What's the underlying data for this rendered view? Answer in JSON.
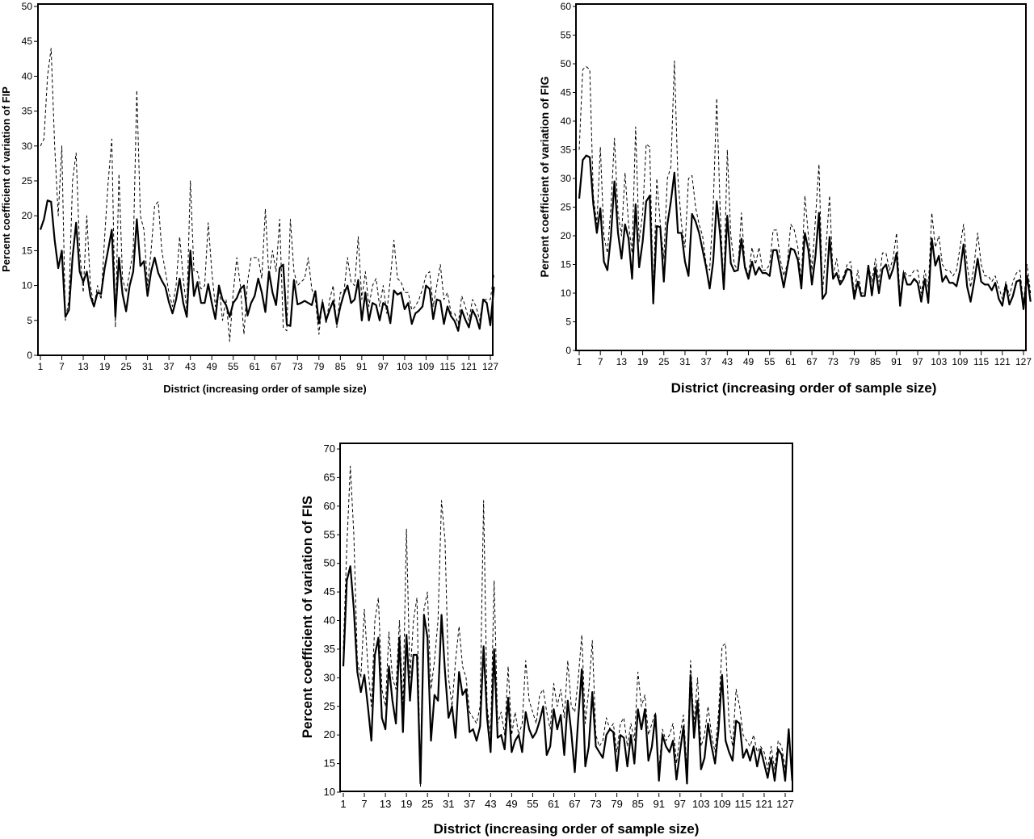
{
  "chart_data": [
    {
      "type": "line",
      "title": "",
      "xlabel": "District (increasing order of sample size)",
      "ylabel": "Percent coefficient of variation of FIP",
      "xlim": [
        1,
        127
      ],
      "ylim": [
        0,
        50
      ],
      "xticks": [
        "1",
        "7",
        "13",
        "19",
        "25",
        "31",
        "37",
        "43",
        "49",
        "55",
        "61",
        "67",
        "73",
        "79",
        "85",
        "91",
        "97",
        "103",
        "109",
        "115",
        "121",
        "127"
      ],
      "yticks": [
        "0",
        "5",
        "10",
        "15",
        "20",
        "25",
        "30",
        "35",
        "40",
        "45",
        "50"
      ],
      "series": [
        {
          "style": "solid",
          "values": [
            18,
            19.5,
            22.2,
            22,
            16.5,
            12.5,
            15,
            5.5,
            6.5,
            14,
            19,
            12,
            10.5,
            12,
            8.5,
            7,
            9,
            8.8,
            12.5,
            15.2,
            18,
            5.5,
            14,
            8.8,
            6.3,
            10,
            12,
            19.5,
            12.8,
            13.5,
            8.5,
            12,
            14,
            11.8,
            10.7,
            9.8,
            7.6,
            6,
            8,
            11,
            7.5,
            5.5,
            15,
            8.5,
            10.5,
            7.5,
            7.5,
            10.2,
            7.5,
            5.2,
            10,
            8,
            7.2,
            5.5,
            7.5,
            8.2,
            9.5,
            10,
            5.7,
            7.5,
            8.5,
            11,
            9,
            6.2,
            12,
            9,
            7.2,
            12.5,
            13,
            4.4,
            4.2,
            10.8,
            7.3,
            7.5,
            7.8,
            7.5,
            7.2,
            9.2,
            4.6,
            7.6,
            5,
            6.5,
            7.8,
            4.5,
            7,
            8.8,
            10,
            7.5,
            8,
            10.8,
            5,
            9,
            5,
            7.5,
            7.2,
            5,
            7.5,
            7,
            4.6,
            9.3,
            8.7,
            9,
            6.6,
            7.5,
            4.5,
            6,
            6.4,
            7,
            10,
            9.5,
            5.2,
            8,
            7.8,
            4.5,
            7,
            5.6,
            4.9,
            3.5,
            6.5,
            5.1,
            4,
            6.5,
            5.5,
            3.8,
            8,
            7.5,
            4.3,
            9.8
          ]
        },
        {
          "style": "dashed",
          "values": [
            30,
            31,
            40,
            44,
            30,
            20,
            30,
            5,
            8,
            25,
            29,
            15,
            9,
            20,
            10,
            7,
            10,
            8,
            17,
            25,
            31,
            4,
            26,
            11,
            9,
            12,
            15,
            38,
            20,
            18,
            10,
            15,
            21.5,
            22,
            15,
            12,
            9,
            7,
            10,
            17,
            11,
            6.5,
            25,
            12,
            12,
            9.5,
            10,
            19,
            12,
            7,
            10,
            5,
            8,
            2,
            9,
            14,
            10,
            3,
            10.5,
            14,
            14,
            14,
            11,
            21,
            11,
            15,
            12,
            19.5,
            4,
            3.5,
            19.5,
            12,
            10,
            10.5,
            11,
            14,
            9.5,
            8,
            3,
            8,
            4.5,
            8,
            10,
            4,
            9,
            9,
            14,
            10.5,
            10,
            17,
            8,
            12,
            7,
            10,
            11,
            7,
            10,
            6,
            11,
            16.5,
            11,
            10.5,
            9,
            9,
            6.5,
            7,
            8,
            9.5,
            11.5,
            12,
            7,
            10,
            13,
            8,
            9,
            6,
            6,
            4.5,
            8.5,
            7,
            5,
            8,
            7,
            5,
            8,
            8,
            8,
            11.5
          ]
        }
      ]
    },
    {
      "type": "line",
      "title": "",
      "xlabel": "District (increasing order of sample size)",
      "ylabel": "Percent coefficient of variation of FIG",
      "xlim": [
        1,
        127
      ],
      "ylim": [
        0,
        60
      ],
      "xticks": [
        "1",
        "7",
        "13",
        "19",
        "25",
        "31",
        "37",
        "43",
        "49",
        "55",
        "61",
        "67",
        "73",
        "79",
        "85",
        "91",
        "97",
        "103",
        "109",
        "115",
        "121",
        "127"
      ],
      "yticks": [
        "0",
        "5",
        "10",
        "15",
        "20",
        "25",
        "30",
        "35",
        "40",
        "45",
        "50",
        "55",
        "60"
      ],
      "series": [
        {
          "style": "solid",
          "values": [
            26.5,
            33.2,
            34,
            33.7,
            25.5,
            20.5,
            24.8,
            15.5,
            14,
            20,
            29.5,
            20.5,
            16,
            22,
            19.5,
            12.5,
            25.5,
            14.5,
            19,
            26,
            27,
            8.2,
            21.7,
            21.5,
            12,
            22,
            26,
            31,
            20.5,
            20.5,
            15.5,
            13,
            23.8,
            22.5,
            20.5,
            17.5,
            14.5,
            10.8,
            15.5,
            26,
            20,
            10.7,
            23.5,
            15.2,
            13.8,
            14,
            19.5,
            14.5,
            12.5,
            15.5,
            13.2,
            14.5,
            13.5,
            13.5,
            13,
            17.5,
            17.5,
            14.2,
            11,
            14.5,
            17.8,
            17.5,
            15.8,
            10.8,
            20.5,
            17.5,
            11.5,
            16.5,
            24,
            9,
            10,
            19.8,
            12.5,
            13.5,
            11.5,
            12.5,
            14.2,
            14,
            9,
            12,
            9.5,
            9.5,
            14.8,
            9.6,
            14.5,
            10,
            14.2,
            15,
            12.5,
            14.2,
            17,
            7.8,
            13.5,
            11.5,
            11.5,
            12.5,
            11.8,
            8.5,
            12.5,
            8.3,
            19.5,
            14.8,
            16.5,
            12,
            13,
            11.8,
            11.8,
            11.2,
            14,
            18.5,
            11.2,
            8.5,
            12,
            16,
            12,
            11.5,
            11.5,
            10.5,
            11.8,
            9,
            7.8,
            11.5,
            8,
            9.5,
            12,
            12.3,
            7.2,
            13,
            8.5
          ]
        },
        {
          "style": "dashed",
          "values": [
            35,
            49,
            49.5,
            49,
            27,
            22,
            35.5,
            20,
            17,
            25,
            37,
            24,
            20,
            31,
            22,
            17,
            39,
            19,
            24,
            36,
            35.5,
            10,
            30,
            22,
            16,
            30,
            32,
            50.5,
            30,
            22,
            18,
            30,
            30.5,
            25,
            22,
            20,
            15,
            14,
            25,
            44,
            24,
            11,
            35,
            20,
            15,
            14,
            24,
            15,
            13,
            18,
            15,
            18,
            14,
            14,
            15,
            21,
            21,
            16,
            13,
            15,
            22,
            21,
            18,
            12,
            27,
            20,
            14,
            23,
            32.5,
            10,
            18,
            27,
            13,
            16,
            12,
            13,
            15,
            15.5,
            10,
            14,
            10,
            10,
            15,
            12,
            16,
            12,
            17,
            17,
            14,
            16,
            20.5,
            9,
            14,
            13,
            13,
            14,
            14,
            10,
            14,
            11,
            24,
            18,
            20,
            15,
            14,
            14,
            13,
            14,
            18,
            22,
            15,
            11,
            15,
            20.5,
            15,
            13,
            13,
            12,
            13,
            11,
            9,
            12,
            9.5,
            12,
            13.5,
            14,
            8,
            15,
            10
          ]
        }
      ]
    },
    {
      "type": "line",
      "title": "",
      "xlabel": "District (increasing order of sample size)",
      "ylabel": "Percent coefficient of variation of FIS",
      "xlim": [
        1,
        127
      ],
      "ylim": [
        10,
        70
      ],
      "xticks": [
        "1",
        "7",
        "13",
        "19",
        "25",
        "31",
        "37",
        "43",
        "49",
        "55",
        "61",
        "67",
        "73",
        "79",
        "85",
        "91",
        "97",
        "103",
        "109",
        "115",
        "121",
        "127"
      ],
      "yticks": [
        "10",
        "15",
        "20",
        "25",
        "30",
        "35",
        "40",
        "45",
        "50",
        "55",
        "60",
        "65",
        "70"
      ],
      "series": [
        {
          "style": "solid",
          "values": [
            32,
            47,
            49.5,
            42,
            31,
            27.5,
            30.5,
            25,
            19,
            34,
            37,
            23,
            21,
            32,
            26,
            22,
            37,
            20.5,
            37.5,
            26,
            34,
            34,
            11.5,
            41,
            37,
            19,
            27,
            26,
            41,
            31,
            23,
            25,
            19.5,
            31,
            27,
            28,
            20.5,
            21,
            19,
            21.5,
            35.5,
            23,
            17,
            35,
            19.5,
            20,
            17.5,
            26.5,
            17,
            19,
            20,
            17,
            24,
            21,
            19.5,
            20.5,
            22.5,
            25,
            16.5,
            18,
            24.5,
            21,
            23.5,
            16.5,
            26,
            20.5,
            13.5,
            23,
            31.5,
            14.5,
            18,
            27.5,
            18,
            17,
            16,
            20,
            21,
            20.5,
            13.7,
            20,
            19.5,
            14.5,
            20,
            15,
            24.5,
            21,
            24.5,
            15.5,
            18,
            23.5,
            12,
            20,
            18,
            17,
            19,
            12.2,
            17,
            21.5,
            11.5,
            30.5,
            19.5,
            26,
            14,
            16,
            22,
            18,
            15,
            21,
            30.5,
            19,
            17,
            15.5,
            22.5,
            22,
            16,
            17.5,
            15.5,
            18,
            14.5,
            17.5,
            15,
            12.5,
            16,
            12,
            17.5,
            16.5,
            12,
            21,
            12
          ]
        },
        {
          "style": "dashed",
          "values": [
            35,
            53,
            67,
            55,
            33,
            30,
            42,
            32,
            25,
            40,
            44,
            28,
            25,
            38,
            30,
            28,
            40,
            25,
            56,
            30,
            40,
            44,
            11,
            42,
            45,
            28,
            33,
            40,
            61,
            54,
            30,
            25,
            33,
            39,
            32,
            30,
            24,
            23,
            22,
            25,
            61,
            25,
            20,
            47,
            22,
            24,
            20,
            32,
            20,
            24,
            20,
            22,
            33,
            26,
            24,
            22,
            27,
            28,
            24,
            21,
            29,
            25,
            28,
            23,
            33,
            25,
            24,
            30,
            37.5,
            22,
            28,
            36.5,
            20,
            18,
            19,
            23,
            21,
            22,
            17,
            22,
            23,
            18,
            22,
            19,
            31,
            25,
            27,
            20,
            22,
            24,
            14,
            21,
            19,
            20,
            22,
            15,
            20,
            23.5,
            14,
            33,
            22,
            30,
            18,
            20,
            25,
            20,
            17,
            24,
            35.5,
            36,
            22,
            18,
            28,
            25,
            20,
            19,
            18,
            20,
            17,
            18,
            17,
            14,
            18,
            14,
            19,
            18,
            14,
            21,
            13
          ]
        }
      ]
    }
  ]
}
